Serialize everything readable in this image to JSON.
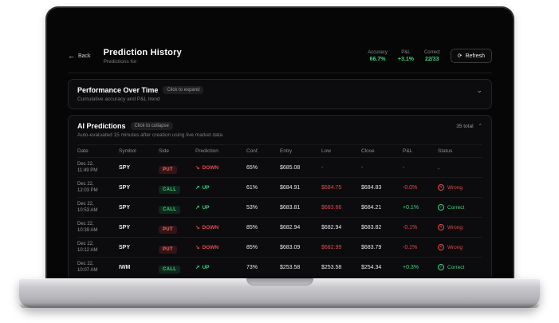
{
  "header": {
    "back": "Back",
    "title": "Prediction History",
    "subtitle": "Predictions for:",
    "stats": [
      {
        "label": "Accuracy",
        "value": "66.7%"
      },
      {
        "label": "P&L",
        "value": "+3.1%"
      },
      {
        "label": "Correct",
        "value": "22/33"
      }
    ],
    "refresh": "Refresh"
  },
  "performance": {
    "title": "Performance Over Time",
    "badge": "Click to expand",
    "subtitle": "Cumulative accuracy and P&L trend"
  },
  "predictions": {
    "title": "AI Predictions",
    "badge": "Click to collapse",
    "subtitle": "Auto-evaluated 15 minutes after creation using live market data",
    "total": "35 total"
  },
  "table": {
    "columns": [
      "Date",
      "Symbol",
      "Side",
      "Prediction",
      "Conf.",
      "Entry",
      "Low",
      "Close",
      "P&L",
      "Status"
    ],
    "rows": [
      {
        "date": [
          "Dec 22,",
          "11:49 PM"
        ],
        "symbol": "SPY",
        "side": "PUT",
        "prediction": "DOWN",
        "conf": "65%",
        "entry": "$685.08",
        "low": {
          "text": "-",
          "tone": "muted"
        },
        "close": {
          "text": "-",
          "tone": "muted"
        },
        "pnl": {
          "text": "-",
          "tone": "muted"
        },
        "status": {
          "text": "-",
          "tone": "muted"
        }
      },
      {
        "date": [
          "Dec 22,",
          "12:03 PM"
        ],
        "symbol": "SPY",
        "side": "CALL",
        "prediction": "UP",
        "conf": "61%",
        "entry": "$684.91",
        "low": {
          "text": "$684.75",
          "tone": "red"
        },
        "close": {
          "text": "$684.83",
          "tone": "default"
        },
        "pnl": {
          "text": "-0.0%",
          "tone": "red"
        },
        "status": {
          "text": "Wrong",
          "tone": "red"
        }
      },
      {
        "date": [
          "Dec 22,",
          "10:53 AM"
        ],
        "symbol": "SPY",
        "side": "CALL",
        "prediction": "UP",
        "conf": "53%",
        "entry": "$683.81",
        "low": {
          "text": "$683.66",
          "tone": "red"
        },
        "close": {
          "text": "$684.21",
          "tone": "default"
        },
        "pnl": {
          "text": "+0.1%",
          "tone": "green"
        },
        "status": {
          "text": "Correct",
          "tone": "green"
        }
      },
      {
        "date": [
          "Dec 22,",
          "10:39 AM"
        ],
        "symbol": "SPY",
        "side": "PUT",
        "prediction": "DOWN",
        "conf": "85%",
        "entry": "$682.94",
        "low": {
          "text": "$682.94",
          "tone": "default"
        },
        "close": {
          "text": "$683.82",
          "tone": "default"
        },
        "pnl": {
          "text": "-0.1%",
          "tone": "red"
        },
        "status": {
          "text": "Wrong",
          "tone": "red"
        }
      },
      {
        "date": [
          "Dec 22,",
          "10:12 AM"
        ],
        "symbol": "SPY",
        "side": "PUT",
        "prediction": "DOWN",
        "conf": "85%",
        "entry": "$683.09",
        "low": {
          "text": "$682.99",
          "tone": "red"
        },
        "close": {
          "text": "$683.79",
          "tone": "default"
        },
        "pnl": {
          "text": "-0.1%",
          "tone": "red"
        },
        "status": {
          "text": "Wrong",
          "tone": "red"
        }
      },
      {
        "date": [
          "Dec 22,",
          "10:07 AM"
        ],
        "symbol": "IWM",
        "side": "CALL",
        "prediction": "UP",
        "conf": "73%",
        "entry": "$253.58",
        "low": {
          "text": "$253.58",
          "tone": "default"
        },
        "close": {
          "text": "$254.34",
          "tone": "default"
        },
        "pnl": {
          "text": "+0.3%",
          "tone": "green"
        },
        "status": {
          "text": "Correct",
          "tone": "green"
        }
      }
    ]
  },
  "icons": {
    "back": "←",
    "refresh": "⟳",
    "chevron_down": "⌄",
    "chevron_up": "⌃",
    "trend_up": "↗",
    "trend_down": "↘",
    "wrong": "✕",
    "correct": "✓"
  },
  "colors": {
    "green": "#3fd07f",
    "red": "#e14b4b"
  }
}
